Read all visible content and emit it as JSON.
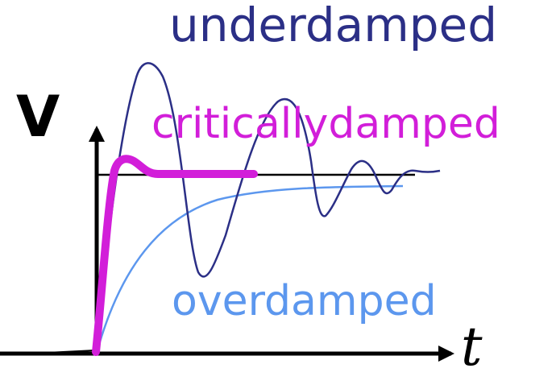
{
  "labels": {
    "underdamped": "underdamped",
    "critically_damped": "criticallydamped",
    "overdamped": "overdamped",
    "y_axis": "V",
    "x_axis": "t"
  },
  "colors": {
    "underdamped": "#2b2f86",
    "critically_damped": "#d21ed9",
    "overdamped": "#5c97ee",
    "axes": "#000000"
  }
}
